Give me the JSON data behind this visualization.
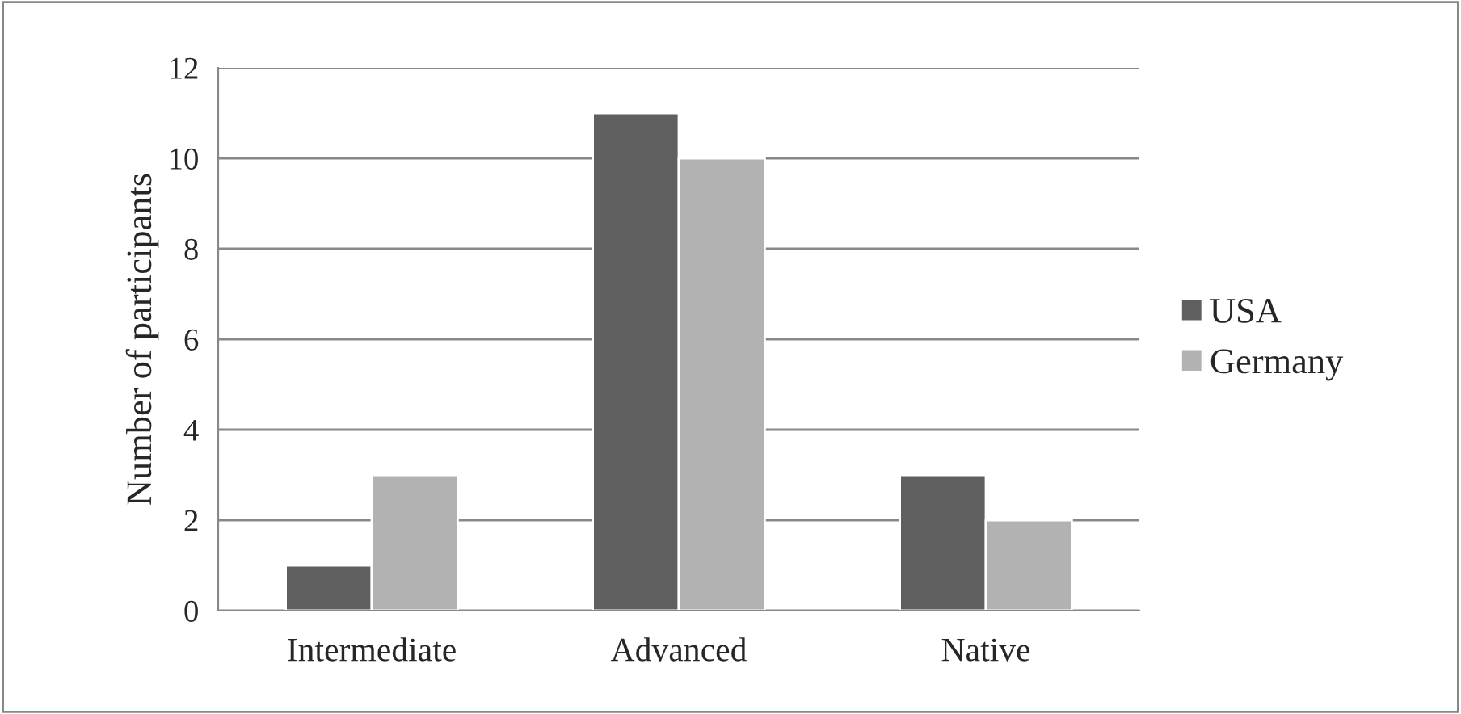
{
  "chart_data": {
    "type": "bar",
    "ylabel": "Number of participants",
    "categories": [
      "Intermediate",
      "Advanced",
      "Native"
    ],
    "series": [
      {
        "name": "USA",
        "color": "#5f5f5f",
        "values": [
          1,
          11,
          3
        ]
      },
      {
        "name": "Germany",
        "color": "#b2b2b2",
        "values": [
          3,
          10,
          2
        ]
      }
    ],
    "ylim": [
      0,
      12
    ],
    "yticks": [
      0,
      2,
      4,
      6,
      8,
      10,
      12
    ],
    "grid": "y",
    "legend": "right"
  }
}
